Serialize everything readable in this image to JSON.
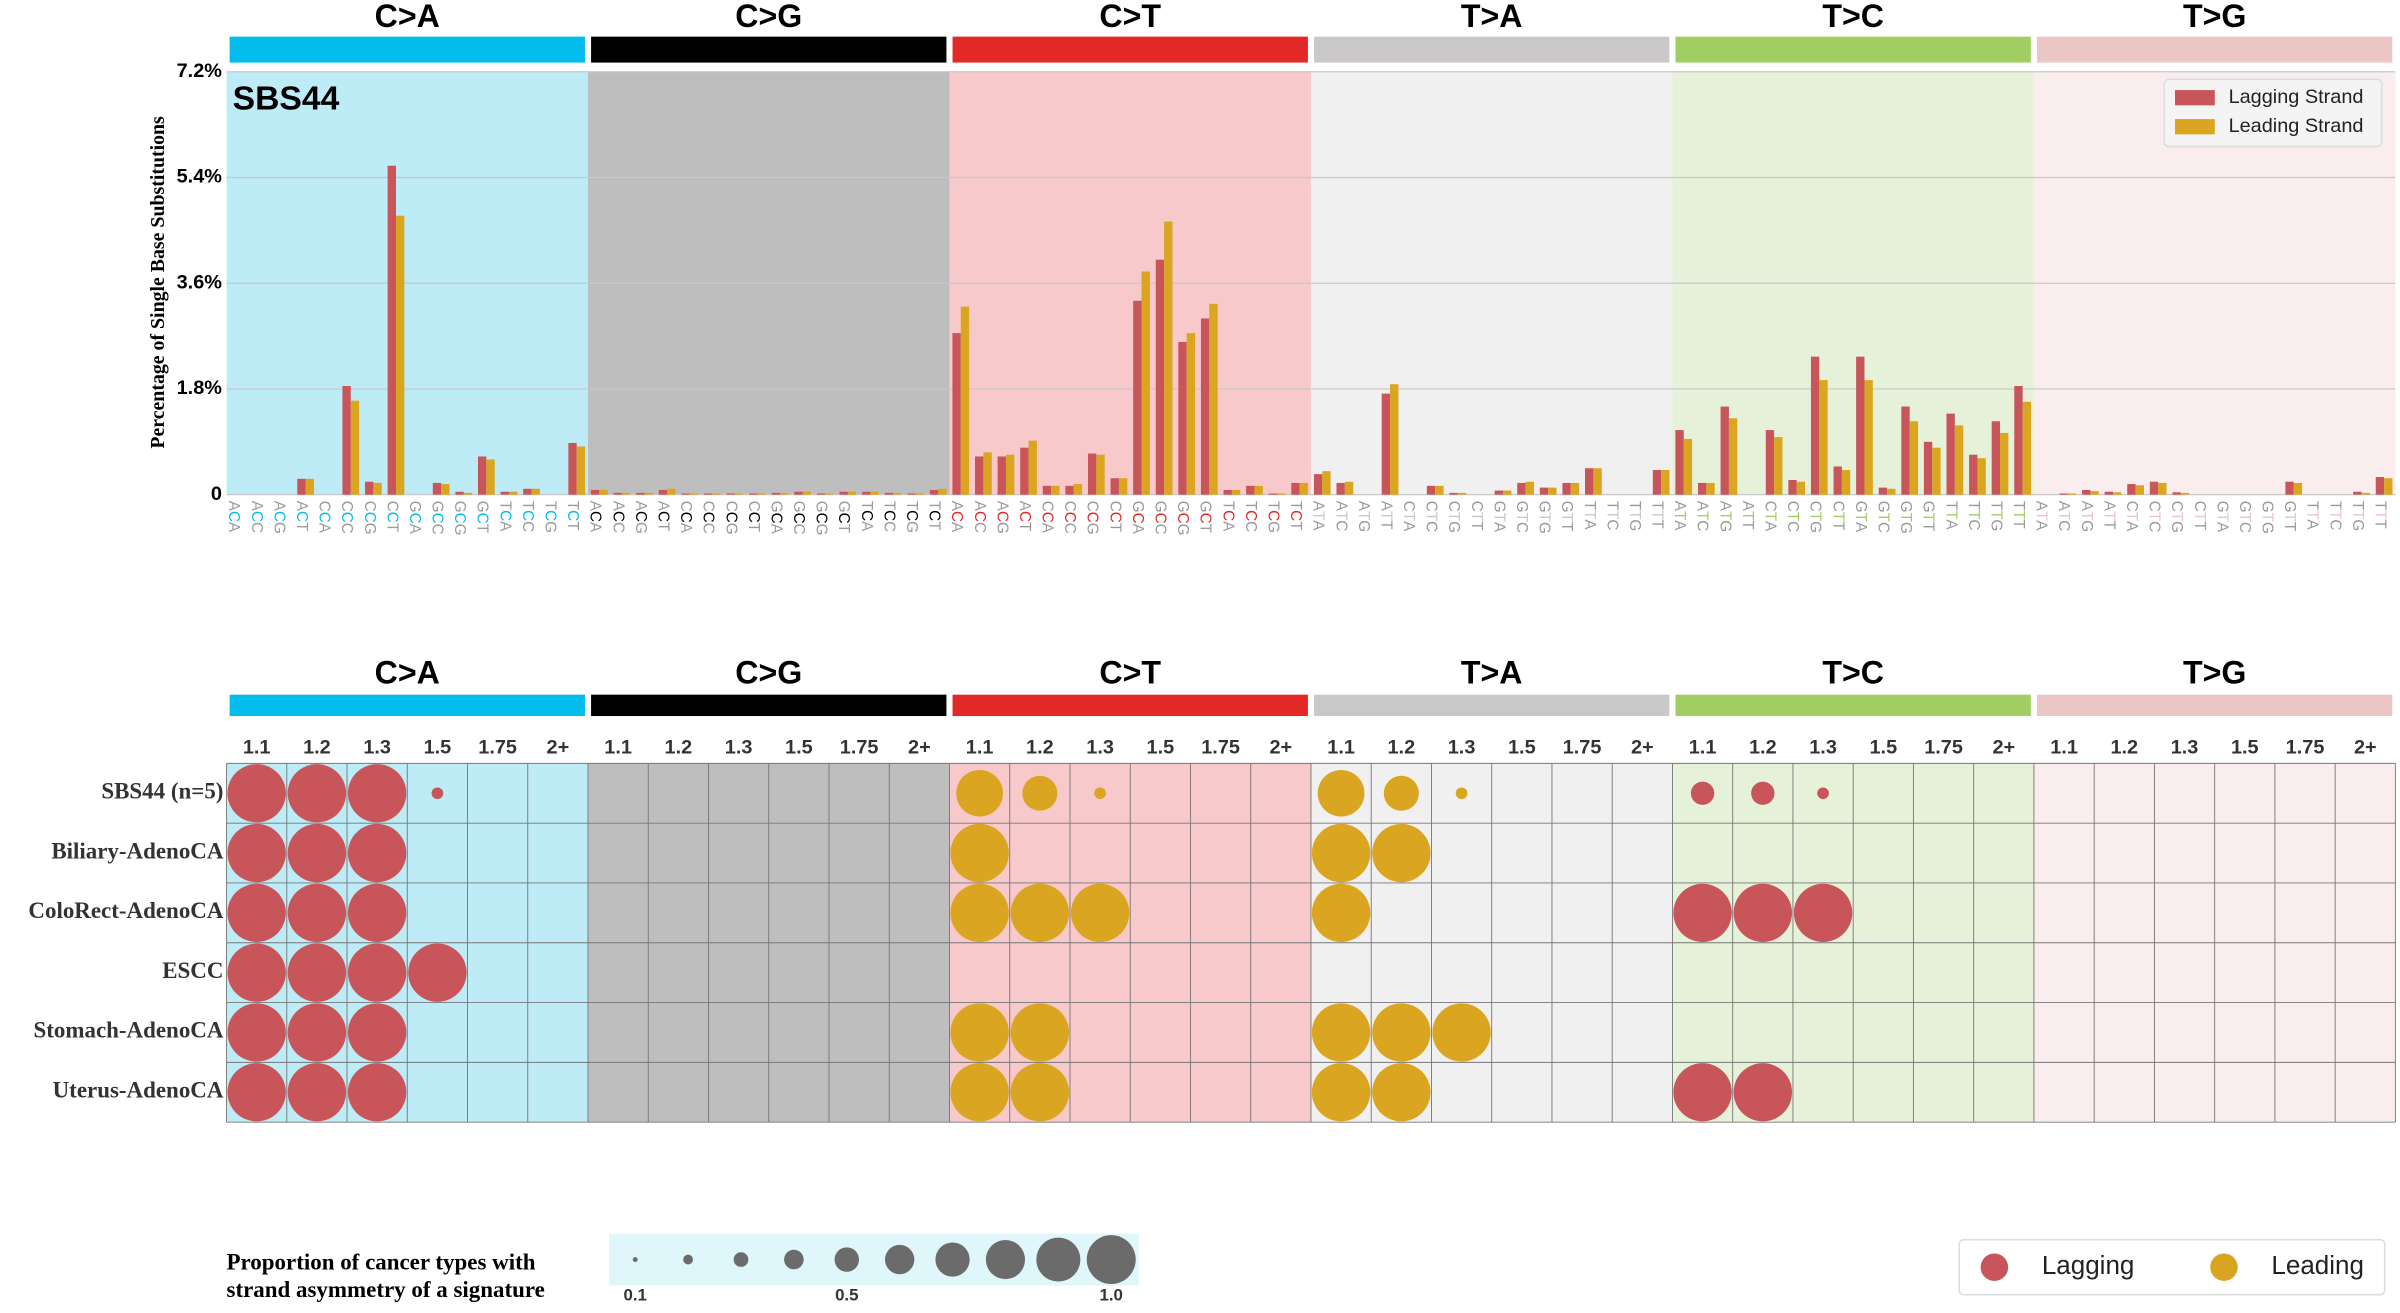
{
  "chart_data": [
    {
      "type": "bar",
      "title": "SBS44",
      "y_label": "Percentage of Single Base Substitutions",
      "groups": [
        {
          "name": "C>A",
          "color": "#03bcee",
          "background": "#bdebf6"
        },
        {
          "name": "C>G",
          "color": "#010101",
          "background": "#bebebe"
        },
        {
          "name": "C>T",
          "color": "#e32926",
          "background": "#f7c9ca"
        },
        {
          "name": "T>A",
          "color": "#cac8c9",
          "background": "#f0f0f0"
        },
        {
          "name": "T>C",
          "color": "#a1ce63",
          "background": "#e5f2d9"
        },
        {
          "name": "T>G",
          "color": "#ebc6c4",
          "background": "#faeded"
        }
      ],
      "categories": [
        "ACA",
        "ACC",
        "ACG",
        "ACT",
        "CCA",
        "CCC",
        "CCG",
        "CCT",
        "GCA",
        "GCC",
        "GCG",
        "GCT",
        "TCA",
        "TCC",
        "TCG",
        "TCT",
        "ACA",
        "ACC",
        "ACG",
        "ACT",
        "CCA",
        "CCC",
        "CCG",
        "CCT",
        "GCA",
        "GCC",
        "GCG",
        "GCT",
        "TCA",
        "TCC",
        "TCG",
        "TCT",
        "ACA",
        "ACC",
        "ACG",
        "ACT",
        "CCA",
        "CCC",
        "CCG",
        "CCT",
        "GCA",
        "GCC",
        "GCG",
        "GCT",
        "TCA",
        "TCC",
        "TCG",
        "TCT",
        "ATA",
        "ATC",
        "ATG",
        "ATT",
        "CTA",
        "CTC",
        "CTG",
        "CTT",
        "GTA",
        "GTC",
        "GTG",
        "GTT",
        "TTA",
        "TTC",
        "TTG",
        "TTT",
        "ATA",
        "ATC",
        "ATG",
        "ATT",
        "CTA",
        "CTC",
        "CTG",
        "CTT",
        "GTA",
        "GTC",
        "GTG",
        "GTT",
        "TTA",
        "TTC",
        "TTG",
        "TTT",
        "ATA",
        "ATC",
        "ATG",
        "ATT",
        "CTA",
        "CTC",
        "CTG",
        "CTT",
        "GTA",
        "GTC",
        "GTG",
        "GTT",
        "TTA",
        "TTC",
        "TTG",
        "TTT"
      ],
      "series": [
        {
          "name": "Lagging Strand",
          "color": "#c8555a",
          "values": [
            0,
            0,
            0,
            0.27,
            0,
            1.85,
            0.22,
            5.6,
            0,
            0.2,
            0.05,
            0.65,
            0.05,
            0.1,
            0,
            0.88,
            0.08,
            0.03,
            0.03,
            0.08,
            0.02,
            0.02,
            0.02,
            0.02,
            0.03,
            0.05,
            0.02,
            0.05,
            0.05,
            0.03,
            0.02,
            0.08,
            2.75,
            0.65,
            0.65,
            0.8,
            0.15,
            0.15,
            0.7,
            0.28,
            3.3,
            4.0,
            2.6,
            3.0,
            0.08,
            0.15,
            0.02,
            0.2,
            0.35,
            0.2,
            0,
            1.72,
            0,
            0.15,
            0.03,
            0,
            0.07,
            0.2,
            0.12,
            0.2,
            0.45,
            0,
            0,
            0.42,
            1.1,
            0.2,
            1.5,
            0,
            1.1,
            0.25,
            2.35,
            0.48,
            2.35,
            0.12,
            1.5,
            0.9,
            1.38,
            0.68,
            1.25,
            1.85,
            0,
            0.02,
            0.08,
            0.05,
            0.18,
            0.22,
            0.04,
            0,
            0,
            0,
            0,
            0.22,
            0,
            0,
            0.05,
            0.3
          ]
        },
        {
          "name": "Leading Strand",
          "color": "#daa520",
          "values": [
            0,
            0,
            0,
            0.27,
            0,
            1.6,
            0.2,
            4.75,
            0,
            0.18,
            0.03,
            0.6,
            0.05,
            0.1,
            0,
            0.82,
            0.08,
            0.03,
            0.03,
            0.1,
            0.02,
            0.02,
            0.02,
            0.02,
            0.03,
            0.05,
            0.02,
            0.05,
            0.05,
            0.03,
            0.02,
            0.1,
            3.2,
            0.72,
            0.68,
            0.92,
            0.15,
            0.18,
            0.68,
            0.28,
            3.8,
            4.65,
            2.75,
            3.25,
            0.08,
            0.15,
            0.02,
            0.2,
            0.4,
            0.22,
            0,
            1.88,
            0,
            0.15,
            0.03,
            0,
            0.07,
            0.22,
            0.12,
            0.2,
            0.45,
            0,
            0,
            0.42,
            0.95,
            0.2,
            1.3,
            0,
            0.98,
            0.22,
            1.95,
            0.42,
            1.95,
            0.1,
            1.25,
            0.8,
            1.18,
            0.62,
            1.05,
            1.58,
            0,
            0.02,
            0.06,
            0.04,
            0.16,
            0.2,
            0.03,
            0,
            0,
            0,
            0,
            0.2,
            0,
            0,
            0.03,
            0.28
          ]
        }
      ],
      "ylim": [
        0,
        7.2
      ],
      "yticks": [
        0,
        {
          "value": 1.8,
          "label": "1.8%"
        },
        {
          "value": 3.6,
          "label": "3.6%"
        },
        {
          "value": 5.4,
          "label": "5.4%"
        },
        {
          "value": 7.2,
          "label": "7.2%"
        }
      ],
      "grid": true,
      "legend": "upper right"
    },
    {
      "type": "bubble",
      "groups": [
        {
          "name": "C>A",
          "color": "#03bcee",
          "background": "#bdebf6"
        },
        {
          "name": "C>G",
          "color": "#010101",
          "background": "#bebebe"
        },
        {
          "name": "C>T",
          "color": "#e32926",
          "background": "#f7c9ca"
        },
        {
          "name": "T>A",
          "color": "#cac8c9",
          "background": "#f0f0f0"
        },
        {
          "name": "T>C",
          "color": "#a1ce63",
          "background": "#e5f2d9"
        },
        {
          "name": "T>G",
          "color": "#ebc6c4",
          "background": "#faeded"
        }
      ],
      "thresholds": [
        1.1,
        1.2,
        1.3,
        1.5,
        1.75,
        "2+"
      ],
      "series": [
        {
          "name": "Lagging",
          "color": "#c8555a"
        },
        {
          "name": "Leading",
          "color": "#daa520"
        }
      ],
      "rows": [
        {
          "name": "SBS44 (n=5)",
          "strand": [
            0,
            null,
            1,
            1,
            0,
            null
          ],
          "values": [
            1,
            1,
            1,
            0.2,
            null,
            null,
            null,
            null,
            null,
            null,
            null,
            null,
            0.8,
            0.6,
            0.2,
            null,
            null,
            null,
            0.8,
            0.6,
            0.2,
            null,
            null,
            null,
            0.4,
            0.4,
            0.2,
            null,
            null,
            null,
            null,
            null,
            null,
            null,
            null,
            null
          ]
        },
        {
          "name": "Biliary-AdenoCA",
          "strand": [
            0,
            null,
            1,
            1,
            null,
            null
          ],
          "values": [
            1,
            1,
            1,
            null,
            null,
            null,
            null,
            null,
            null,
            null,
            null,
            null,
            1,
            null,
            null,
            null,
            null,
            null,
            1,
            1,
            null,
            null,
            null,
            null,
            null,
            null,
            null,
            null,
            null,
            null,
            null,
            null,
            null,
            null,
            null,
            null
          ]
        },
        {
          "name": "ColoRect-AdenoCA",
          "strand": [
            0,
            null,
            1,
            1,
            0,
            null
          ],
          "values": [
            1,
            1,
            1,
            null,
            null,
            null,
            null,
            null,
            null,
            null,
            null,
            null,
            1,
            1,
            1,
            null,
            null,
            null,
            1,
            null,
            null,
            null,
            null,
            null,
            1,
            1,
            1,
            null,
            null,
            null,
            null,
            null,
            null,
            null,
            null,
            null
          ]
        },
        {
          "name": "ESCC",
          "strand": [
            0,
            null,
            null,
            null,
            null,
            null
          ],
          "values": [
            1,
            1,
            1,
            1,
            null,
            null,
            null,
            null,
            null,
            null,
            null,
            null,
            null,
            null,
            null,
            null,
            null,
            null,
            null,
            null,
            null,
            null,
            null,
            null,
            null,
            null,
            null,
            null,
            null,
            null,
            null,
            null,
            null,
            null,
            null,
            null
          ]
        },
        {
          "name": "Stomach-AdenoCA",
          "strand": [
            0,
            null,
            1,
            1,
            null,
            null
          ],
          "values": [
            1,
            1,
            1,
            null,
            null,
            null,
            null,
            null,
            null,
            null,
            null,
            null,
            1,
            1,
            null,
            null,
            null,
            null,
            1,
            1,
            1,
            null,
            null,
            null,
            null,
            null,
            null,
            null,
            null,
            null,
            null,
            null,
            null,
            null,
            null,
            null
          ]
        },
        {
          "name": "Uterus-AdenoCA",
          "strand": [
            0,
            null,
            1,
            1,
            0,
            null
          ],
          "values": [
            1,
            1,
            1,
            null,
            null,
            null,
            null,
            null,
            null,
            null,
            null,
            null,
            1,
            1,
            null,
            null,
            null,
            null,
            1,
            1,
            null,
            null,
            null,
            null,
            1,
            1,
            null,
            null,
            null,
            null,
            null,
            null,
            null,
            null,
            null,
            null
          ]
        }
      ],
      "size_legend": {
        "title": [
          "Proportion of cancer types with",
          "strand asymmetry of a signature"
        ],
        "sizes": [
          0.1,
          0.2,
          0.3,
          0.4,
          0.5,
          0.6,
          0.7,
          0.8,
          0.9,
          1.0
        ],
        "ticks": [
          0.1,
          0.5,
          {
            "value": 1,
            "label": "1.0"
          }
        ]
      }
    }
  ]
}
